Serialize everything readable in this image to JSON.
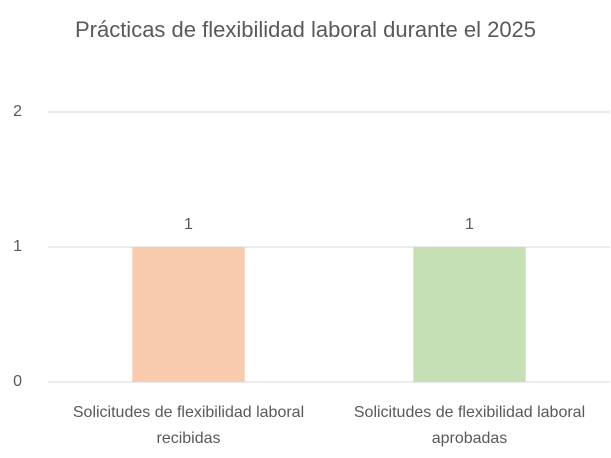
{
  "chart_data": {
    "type": "bar",
    "title": "Prácticas de flexibilidad laboral durante el 2025",
    "categories": [
      "Solicitudes de flexibilidad laboral recibidas",
      "Solicitudes de flexibilidad laboral aprobadas"
    ],
    "values": [
      1,
      1
    ],
    "colors": [
      "#f8cbad",
      "#c5e0b4"
    ],
    "ylim": [
      0,
      2
    ],
    "yticks": [
      0,
      1,
      2
    ],
    "grid": true,
    "data_labels": true
  }
}
